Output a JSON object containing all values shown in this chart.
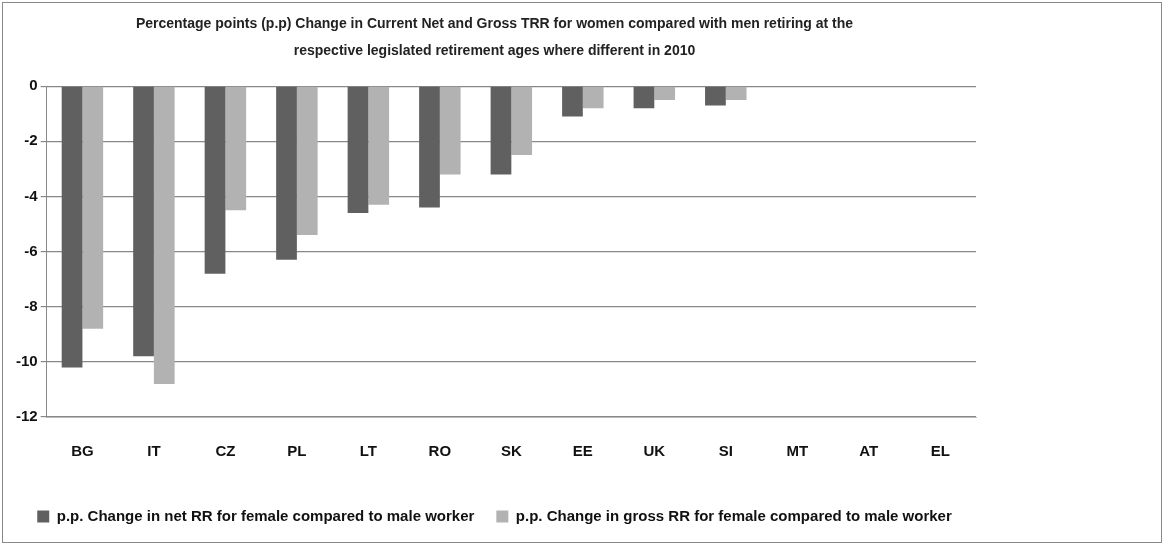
{
  "chart_data": {
    "type": "bar",
    "title": "Percentage points (p.p) Change in Current Net and Gross TRR for women compared with men retiring at the respective legislated retirement ages where different in 2010",
    "categories": [
      "BG",
      "IT",
      "CZ",
      "PL",
      "LT",
      "RO",
      "SK",
      "EE",
      "UK",
      "SI",
      "MT",
      "AT",
      "EL"
    ],
    "series": [
      {
        "name": "p.p. Change in net RR for female compared to male worker",
        "color": "#606060",
        "values": [
          -10.2,
          -9.8,
          -6.8,
          -6.3,
          -4.6,
          -4.4,
          -3.2,
          -1.1,
          -0.8,
          -0.7,
          null,
          null,
          null
        ]
      },
      {
        "name": "p.p. Change in gross RR for female compared to male worker",
        "color": "#b2b2b2",
        "values": [
          -8.8,
          -10.8,
          -4.5,
          -5.4,
          -4.3,
          -3.2,
          -2.5,
          -0.8,
          -0.5,
          -0.5,
          null,
          null,
          null
        ]
      }
    ],
    "ylim": [
      -12,
      0
    ],
    "yticks": [
      -12,
      -10,
      -8,
      -6,
      -4,
      -2,
      0
    ],
    "grid": "y",
    "legend": "bottom"
  }
}
